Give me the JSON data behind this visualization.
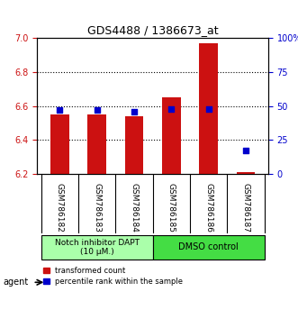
{
  "title": "GDS4488 / 1386673_at",
  "samples": [
    "GSM786182",
    "GSM786183",
    "GSM786184",
    "GSM786185",
    "GSM786186",
    "GSM786187"
  ],
  "transformed_counts": [
    6.55,
    6.55,
    6.54,
    6.65,
    6.97,
    6.21
  ],
  "percentile_ranks": [
    47,
    47,
    46,
    48,
    48,
    17
  ],
  "ylim_left": [
    6.2,
    7.0
  ],
  "ylim_right": [
    0,
    100
  ],
  "yticks_left": [
    6.2,
    6.4,
    6.6,
    6.8,
    7.0
  ],
  "yticks_right": [
    0,
    25,
    50,
    75,
    100
  ],
  "ytick_labels_right": [
    "0",
    "25",
    "50",
    "75",
    "100%"
  ],
  "groups": [
    {
      "label": "Notch inhibitor DAPT\n(10 μM.)",
      "color": "#aaffaa",
      "start": 0,
      "end": 3
    },
    {
      "label": "DMSO control",
      "color": "#44dd44",
      "start": 3,
      "end": 6
    }
  ],
  "bar_color": "#cc1111",
  "dot_color": "#0000cc",
  "bar_width": 0.5,
  "grid_color": "#000000",
  "bg_color": "#ffffff",
  "plot_bg": "#ffffff",
  "tick_label_area_color": "#d0d0d0",
  "legend_bar_label": "transformed count",
  "legend_dot_label": "percentile rank within the sample",
  "agent_label": "agent",
  "left_tick_color": "#cc1111",
  "right_tick_color": "#0000cc"
}
